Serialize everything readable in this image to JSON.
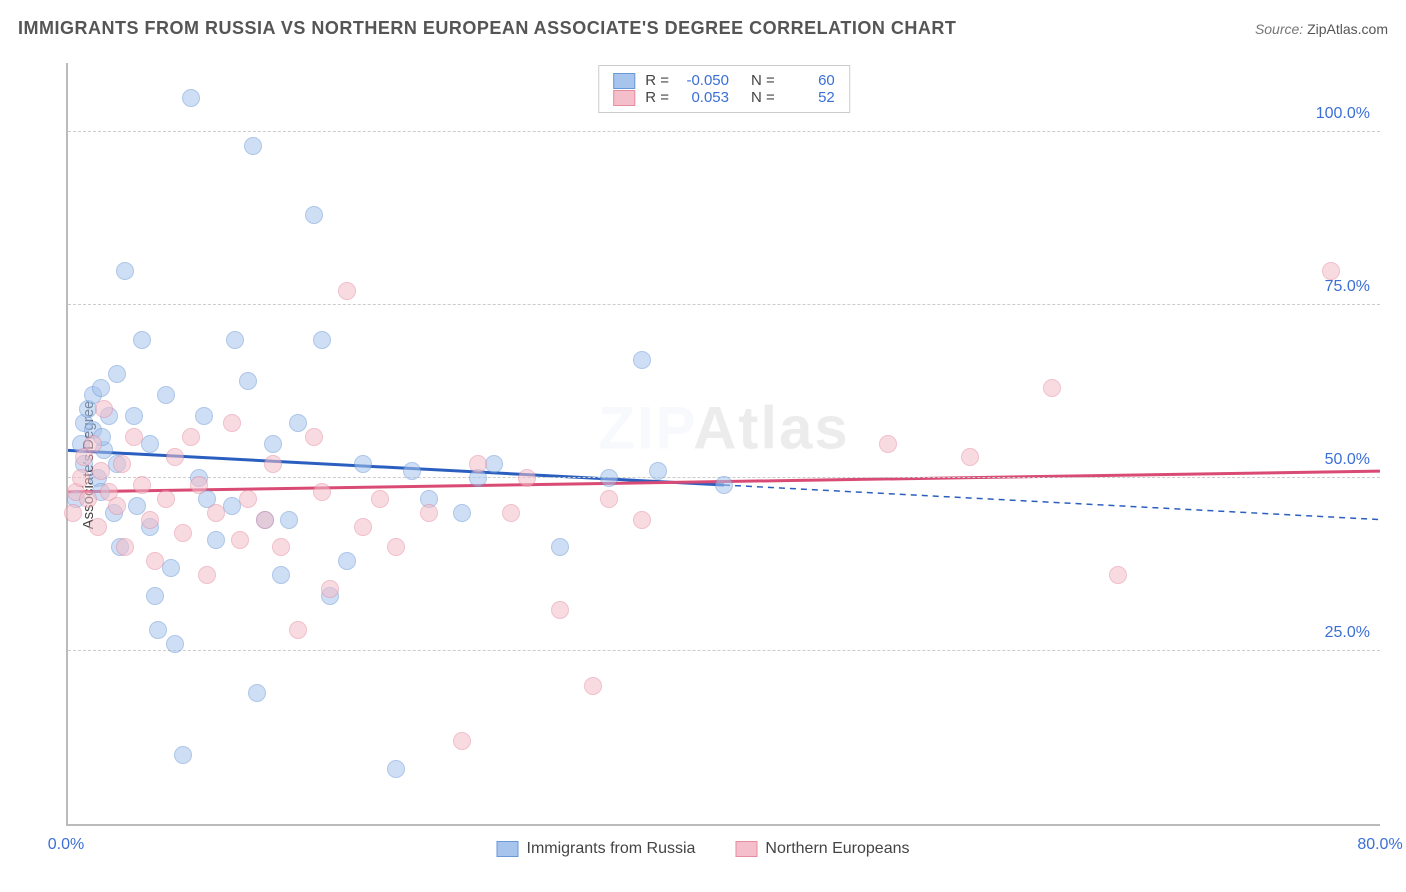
{
  "title": "IMMIGRANTS FROM RUSSIA VS NORTHERN EUROPEAN ASSOCIATE'S DEGREE CORRELATION CHART",
  "source_label": "Source:",
  "source_value": "ZipAtlas.com",
  "ylabel": "Associate's Degree",
  "watermark": "ZIPAtlas",
  "chart": {
    "type": "scatter",
    "xlim": [
      0,
      80
    ],
    "ylim": [
      0,
      110
    ],
    "xticks": [
      {
        "v": 0,
        "label": "0.0%"
      },
      {
        "v": 80,
        "label": "80.0%"
      }
    ],
    "yticks": [
      {
        "v": 25,
        "label": "25.0%"
      },
      {
        "v": 50,
        "label": "50.0%"
      },
      {
        "v": 75,
        "label": "75.0%"
      },
      {
        "v": 100,
        "label": "100.0%"
      }
    ],
    "background_color": "#ffffff",
    "grid_color": "#cccccc",
    "axis_color": "#bbbbbb",
    "tick_color": "#3b6fd6",
    "marker_radius": 9,
    "marker_opacity": 0.55,
    "series": [
      {
        "name": "Immigrants from Russia",
        "color_fill": "#a7c4ec",
        "color_stroke": "#6a99d8",
        "trend_color": "#2b5fbf",
        "trend_width": 3,
        "trend_dash_extend": true,
        "R": "-0.050",
        "N": "60",
        "trend": {
          "x1": 0,
          "y1": 54,
          "x2": 40,
          "y2": 49,
          "x2_ext": 80,
          "y2_ext": 44
        },
        "points": [
          [
            0.5,
            47
          ],
          [
            0.8,
            55
          ],
          [
            1,
            52
          ],
          [
            1,
            58
          ],
          [
            1.2,
            60
          ],
          [
            1.5,
            62
          ],
          [
            1.5,
            57
          ],
          [
            1.8,
            50
          ],
          [
            2,
            63
          ],
          [
            2,
            48
          ],
          [
            2.2,
            54
          ],
          [
            2.5,
            59
          ],
          [
            2.8,
            45
          ],
          [
            3,
            52
          ],
          [
            3,
            65
          ],
          [
            3.2,
            40
          ],
          [
            3.5,
            80
          ],
          [
            4,
            59
          ],
          [
            4.2,
            46
          ],
          [
            4.5,
            70
          ],
          [
            5,
            43
          ],
          [
            5,
            55
          ],
          [
            5.3,
            33
          ],
          [
            5.5,
            28
          ],
          [
            6,
            62
          ],
          [
            6.3,
            37
          ],
          [
            6.5,
            26
          ],
          [
            7,
            10
          ],
          [
            7.5,
            105
          ],
          [
            8,
            50
          ],
          [
            8.3,
            59
          ],
          [
            8.5,
            47
          ],
          [
            9,
            41
          ],
          [
            10,
            46
          ],
          [
            10.2,
            70
          ],
          [
            11,
            64
          ],
          [
            11.3,
            98
          ],
          [
            11.5,
            19
          ],
          [
            12,
            44
          ],
          [
            12.5,
            55
          ],
          [
            13,
            36
          ],
          [
            13.5,
            44
          ],
          [
            14,
            58
          ],
          [
            15,
            88
          ],
          [
            15.5,
            70
          ],
          [
            16,
            33
          ],
          [
            17,
            38
          ],
          [
            18,
            52
          ],
          [
            20,
            8
          ],
          [
            21,
            51
          ],
          [
            22,
            47
          ],
          [
            24,
            45
          ],
          [
            25,
            50
          ],
          [
            26,
            52
          ],
          [
            30,
            40
          ],
          [
            33,
            50
          ],
          [
            35,
            67
          ],
          [
            36,
            51
          ],
          [
            40,
            49
          ],
          [
            2.1,
            56
          ]
        ]
      },
      {
        "name": "Northern Europeans",
        "color_fill": "#f4bfca",
        "color_stroke": "#e68ca1",
        "trend_color": "#d94b74",
        "trend_width": 3,
        "trend_dash_extend": false,
        "R": "0.053",
        "N": "52",
        "trend": {
          "x1": 0,
          "y1": 48,
          "x2": 80,
          "y2": 51
        },
        "points": [
          [
            0.3,
            45
          ],
          [
            0.5,
            48
          ],
          [
            0.8,
            50
          ],
          [
            1,
            53
          ],
          [
            1.2,
            47
          ],
          [
            1.5,
            55
          ],
          [
            1.8,
            43
          ],
          [
            2,
            51
          ],
          [
            2.2,
            60
          ],
          [
            2.5,
            48
          ],
          [
            3,
            46
          ],
          [
            3.3,
            52
          ],
          [
            3.5,
            40
          ],
          [
            4,
            56
          ],
          [
            4.5,
            49
          ],
          [
            5,
            44
          ],
          [
            5.3,
            38
          ],
          [
            6,
            47
          ],
          [
            6.5,
            53
          ],
          [
            7,
            42
          ],
          [
            7.5,
            56
          ],
          [
            8,
            49
          ],
          [
            8.5,
            36
          ],
          [
            9,
            45
          ],
          [
            10,
            58
          ],
          [
            10.5,
            41
          ],
          [
            11,
            47
          ],
          [
            12,
            44
          ],
          [
            12.5,
            52
          ],
          [
            13,
            40
          ],
          [
            14,
            28
          ],
          [
            15,
            56
          ],
          [
            15.5,
            48
          ],
          [
            16,
            34
          ],
          [
            17,
            77
          ],
          [
            18,
            43
          ],
          [
            19,
            47
          ],
          [
            20,
            40
          ],
          [
            22,
            45
          ],
          [
            24,
            12
          ],
          [
            25,
            52
          ],
          [
            27,
            45
          ],
          [
            28,
            50
          ],
          [
            30,
            31
          ],
          [
            32,
            20
          ],
          [
            33,
            47
          ],
          [
            35,
            44
          ],
          [
            50,
            55
          ],
          [
            55,
            53
          ],
          [
            60,
            63
          ],
          [
            64,
            36
          ],
          [
            77,
            80
          ]
        ]
      }
    ]
  },
  "stats_box": {
    "rows": [
      {
        "swatch_fill": "#a7c4ec",
        "swatch_stroke": "#6a99d8",
        "R_label": "R =",
        "R": "-0.050",
        "N_label": "N =",
        "N": "60"
      },
      {
        "swatch_fill": "#f4bfca",
        "swatch_stroke": "#e68ca1",
        "R_label": "R =",
        "R": " 0.053",
        "N_label": "N =",
        "N": "52"
      }
    ]
  },
  "bottom_legend": [
    {
      "swatch_fill": "#a7c4ec",
      "swatch_stroke": "#6a99d8",
      "label": "Immigrants from Russia"
    },
    {
      "swatch_fill": "#f4bfca",
      "swatch_stroke": "#e68ca1",
      "label": "Northern Europeans"
    }
  ]
}
